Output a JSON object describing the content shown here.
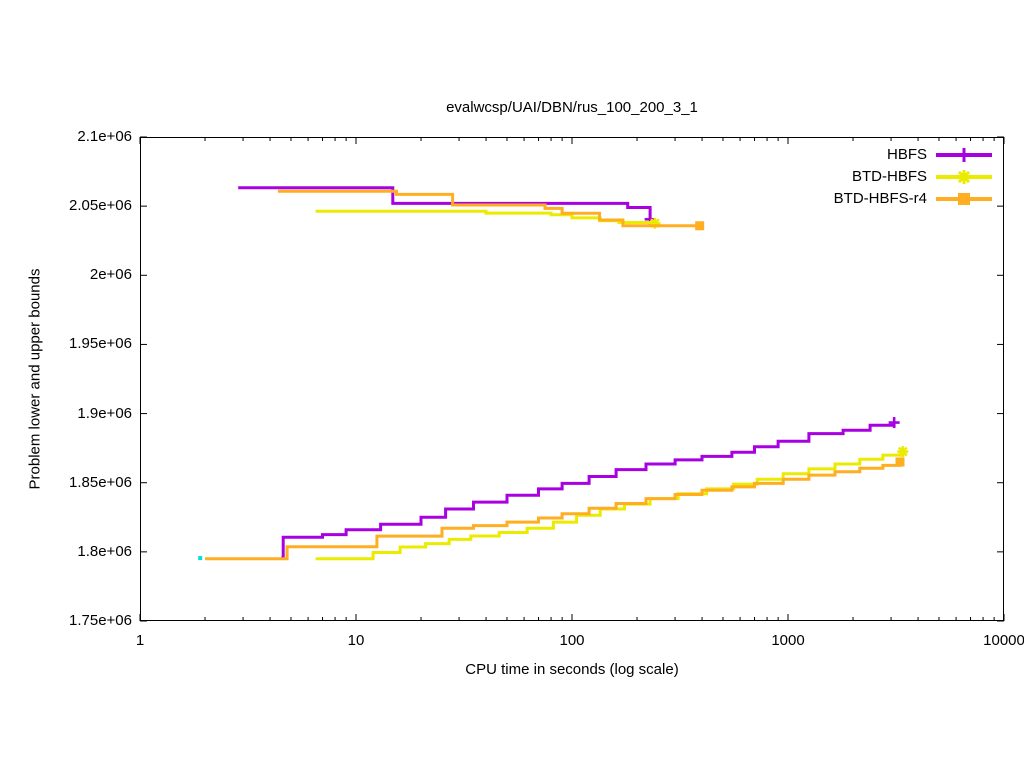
{
  "chart_data": {
    "type": "line",
    "title": "evalwcsp/UAI/DBN/rus_100_200_3_1",
    "xlabel": "CPU time in seconds (log scale)",
    "ylabel": "Problem lower and upper bounds",
    "x_scale": "log",
    "xlim": [
      1,
      10000
    ],
    "ylim": [
      1750000,
      2100000
    ],
    "grid": false,
    "legend_position": "top-right-inside",
    "x_ticks": [
      {
        "value": 1,
        "label": "1"
      },
      {
        "value": 10,
        "label": "10"
      },
      {
        "value": 100,
        "label": "100"
      },
      {
        "value": 1000,
        "label": "1000"
      },
      {
        "value": 10000,
        "label": "10000"
      }
    ],
    "y_ticks": [
      {
        "value": 1750000,
        "label": "1.75e+06"
      },
      {
        "value": 1800000,
        "label": "1.8e+06"
      },
      {
        "value": 1850000,
        "label": "1.85e+06"
      },
      {
        "value": 1900000,
        "label": "1.9e+06"
      },
      {
        "value": 1950000,
        "label": "1.95e+06"
      },
      {
        "value": 2000000,
        "label": "2e+06"
      },
      {
        "value": 2050000,
        "label": "2.05e+06"
      },
      {
        "value": 2100000,
        "label": "2.1e+06"
      }
    ],
    "series": [
      {
        "name": "HBFS",
        "color": "#a800e0",
        "marker": "plus",
        "upper_bound": [
          [
            2.85,
            2063300
          ],
          [
            14.8,
            2052000
          ],
          [
            181,
            2049000
          ],
          [
            230,
            2040500
          ]
        ],
        "lower_bound": [
          [
            4.5,
            1795500
          ],
          [
            4.6,
            1810500
          ],
          [
            7,
            1812500
          ],
          [
            9,
            1816000
          ],
          [
            13,
            1820000
          ],
          [
            20,
            1825000
          ],
          [
            26,
            1831000
          ],
          [
            35,
            1836000
          ],
          [
            50,
            1841000
          ],
          [
            70,
            1845500
          ],
          [
            90,
            1849500
          ],
          [
            120,
            1854500
          ],
          [
            160,
            1859500
          ],
          [
            220,
            1863500
          ],
          [
            300,
            1866500
          ],
          [
            400,
            1869000
          ],
          [
            550,
            1872000
          ],
          [
            700,
            1876000
          ],
          [
            900,
            1880000
          ],
          [
            1250,
            1885500
          ],
          [
            1800,
            1888000
          ],
          [
            2400,
            1891500
          ],
          [
            3100,
            1893500
          ]
        ]
      },
      {
        "name": "BTD-HBFS",
        "color": "#ebeb00",
        "marker": "asterisk",
        "upper_bound": [
          [
            6.5,
            2046300
          ],
          [
            40,
            2045000
          ],
          [
            80,
            2043800
          ],
          [
            100,
            2041500
          ],
          [
            135,
            2039500
          ],
          [
            165,
            2038200
          ],
          [
            242,
            2037600
          ]
        ],
        "lower_bound": [
          [
            6.5,
            1795000
          ],
          [
            12,
            1799500
          ],
          [
            16,
            1803500
          ],
          [
            21,
            1806000
          ],
          [
            27,
            1809000
          ],
          [
            34,
            1811500
          ],
          [
            46,
            1814000
          ],
          [
            62,
            1817000
          ],
          [
            82,
            1821500
          ],
          [
            105,
            1826500
          ],
          [
            135,
            1831000
          ],
          [
            175,
            1834500
          ],
          [
            230,
            1838500
          ],
          [
            310,
            1842000
          ],
          [
            420,
            1845500
          ],
          [
            560,
            1849000
          ],
          [
            720,
            1852500
          ],
          [
            950,
            1856500
          ],
          [
            1250,
            1860000
          ],
          [
            1650,
            1863500
          ],
          [
            2150,
            1867000
          ],
          [
            2750,
            1870000
          ],
          [
            3400,
            1872500
          ]
        ]
      },
      {
        "name": "BTD-HBFS-r4",
        "color": "#ffae21",
        "marker": "square",
        "upper_bound": [
          [
            4.35,
            2060800
          ],
          [
            15.4,
            2058500
          ],
          [
            28,
            2050800
          ],
          [
            75,
            2048400
          ],
          [
            90,
            2044800
          ],
          [
            134,
            2040000
          ],
          [
            172,
            2035800
          ],
          [
            390,
            2035800
          ]
        ],
        "lower_bound": [
          [
            2.0,
            1795000
          ],
          [
            4.8,
            1803700
          ],
          [
            12.5,
            1811400
          ],
          [
            25,
            1817000
          ],
          [
            35,
            1819000
          ],
          [
            50,
            1821500
          ],
          [
            70,
            1824500
          ],
          [
            90,
            1827500
          ],
          [
            120,
            1831500
          ],
          [
            160,
            1835000
          ],
          [
            220,
            1838500
          ],
          [
            300,
            1841500
          ],
          [
            400,
            1844500
          ],
          [
            550,
            1847000
          ],
          [
            700,
            1849500
          ],
          [
            950,
            1852500
          ],
          [
            1250,
            1855500
          ],
          [
            1650,
            1858000
          ],
          [
            2150,
            1860500
          ],
          [
            2750,
            1862500
          ],
          [
            3300,
            1865000
          ]
        ]
      }
    ],
    "extra_points": [
      {
        "x": 1.9,
        "y": 1795500,
        "color": "#00dddd",
        "marker": "dot"
      }
    ],
    "axis_color": "#000000",
    "background_color": "#ffffff"
  }
}
